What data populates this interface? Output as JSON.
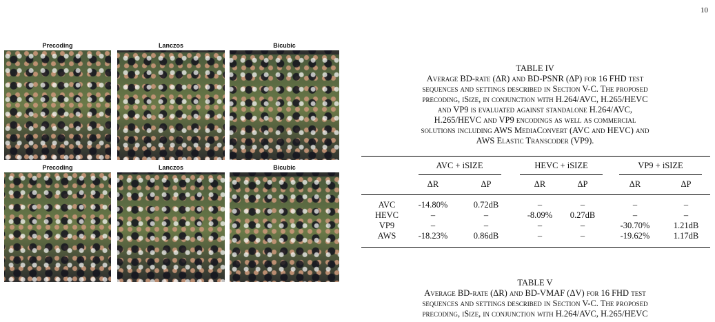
{
  "page_number": "10",
  "figure": {
    "rows": [
      {
        "labels": [
          "Precoding",
          "Lanczos",
          "Bicubic"
        ]
      },
      {
        "labels": [
          "Precoding",
          "Lanczos",
          "Bicubic"
        ]
      }
    ]
  },
  "table4": {
    "label": "TABLE IV",
    "caption": [
      "Average BD-rate (ΔR) and BD-PSNR (ΔP) for 16 FHD test",
      "sequences and settings described in Section V-C. The proposed",
      "precoding, iSize, in conjunction with H.264/AVC, H.265/HEVC",
      "and VP9 is evaluated against standalone H.264/AVC,",
      "H.265/HEVC and VP9 encodings as well as commercial",
      "solutions including AWS MediaConvert (AVC and HEVC) and",
      "AWS Elastic Transcoder (VP9)."
    ],
    "groups": [
      "AVC + iSIZE",
      "HEVC + iSIZE",
      "VP9 + iSIZE"
    ],
    "subheaders": [
      "ΔR",
      "ΔP",
      "ΔR",
      "ΔP",
      "ΔR",
      "ΔP"
    ],
    "rows": [
      [
        "AVC",
        "-14.80%",
        "0.72dB",
        "–",
        "–",
        "–",
        "–"
      ],
      [
        "HEVC",
        "–",
        "–",
        "-8.09%",
        "0.27dB",
        "–",
        "–"
      ],
      [
        "VP9",
        "–",
        "–",
        "–",
        "–",
        "-30.70%",
        "1.21dB"
      ],
      [
        "AWS",
        "-18.23%",
        "0.86dB",
        "–",
        "–",
        "-19.62%",
        "1.17dB"
      ]
    ]
  },
  "table5": {
    "label": "TABLE V",
    "caption": [
      "Average BD-rate (ΔR) and BD-VMAF (ΔV) for 16 FHD test",
      "sequences and settings described in Section V-C. The proposed",
      "precoding, iSize, in conjunction with H.264/AVC, H.265/HEVC"
    ]
  }
}
